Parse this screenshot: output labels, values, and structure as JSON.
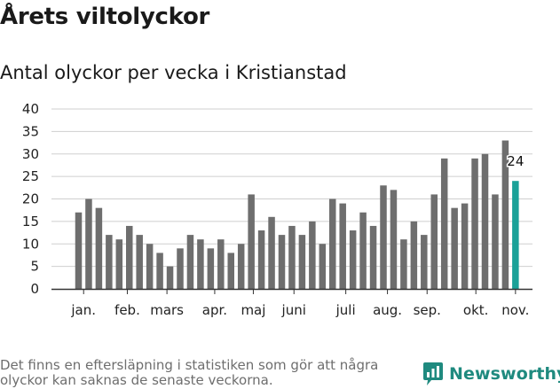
{
  "title": "Årets viltolyckor",
  "subtitle": "Antal olyckor per vecka i Kristianstad",
  "footnote": "Det finns en eftersläpning i statistiken som gör att några olyckor kan saknas de senaste veckorna.",
  "logo": {
    "text": "Newsworthy",
    "icon": "newsworthy-logo-icon"
  },
  "colors": {
    "bar": "#6e6e6e",
    "highlight": "#1aa198",
    "grid": "#cfcfcf",
    "axis": "#333333",
    "brand": "#1f8a7f"
  },
  "chart_data": {
    "type": "bar",
    "title": "Antal olyckor per vecka i Kristianstad",
    "xlabel": "",
    "ylabel": "",
    "ylim": [
      0,
      40
    ],
    "yticks": [
      0,
      5,
      10,
      15,
      20,
      25,
      30,
      35,
      40
    ],
    "grid": true,
    "values": [
      17,
      20,
      18,
      12,
      11,
      14,
      12,
      10,
      8,
      5,
      9,
      12,
      11,
      9,
      11,
      8,
      10,
      21,
      13,
      16,
      12,
      14,
      12,
      15,
      10,
      20,
      19,
      13,
      17,
      14,
      23,
      22,
      11,
      15,
      12,
      21,
      29,
      18,
      19,
      29,
      30,
      21,
      33,
      24
    ],
    "highlight_index": 43,
    "highlight_label": "24",
    "month_labels": [
      {
        "label": "jan.",
        "at": 0.5
      },
      {
        "label": "feb.",
        "at": 4.8
      },
      {
        "label": "mars",
        "at": 8.7
      },
      {
        "label": "apr.",
        "at": 13.4
      },
      {
        "label": "maj",
        "at": 17.2
      },
      {
        "label": "juni",
        "at": 21.2
      },
      {
        "label": "juli",
        "at": 26.3
      },
      {
        "label": "aug.",
        "at": 30.4
      },
      {
        "label": "sep.",
        "at": 34.3
      },
      {
        "label": "okt.",
        "at": 39.1
      },
      {
        "label": "nov.",
        "at": 43.0
      }
    ]
  }
}
